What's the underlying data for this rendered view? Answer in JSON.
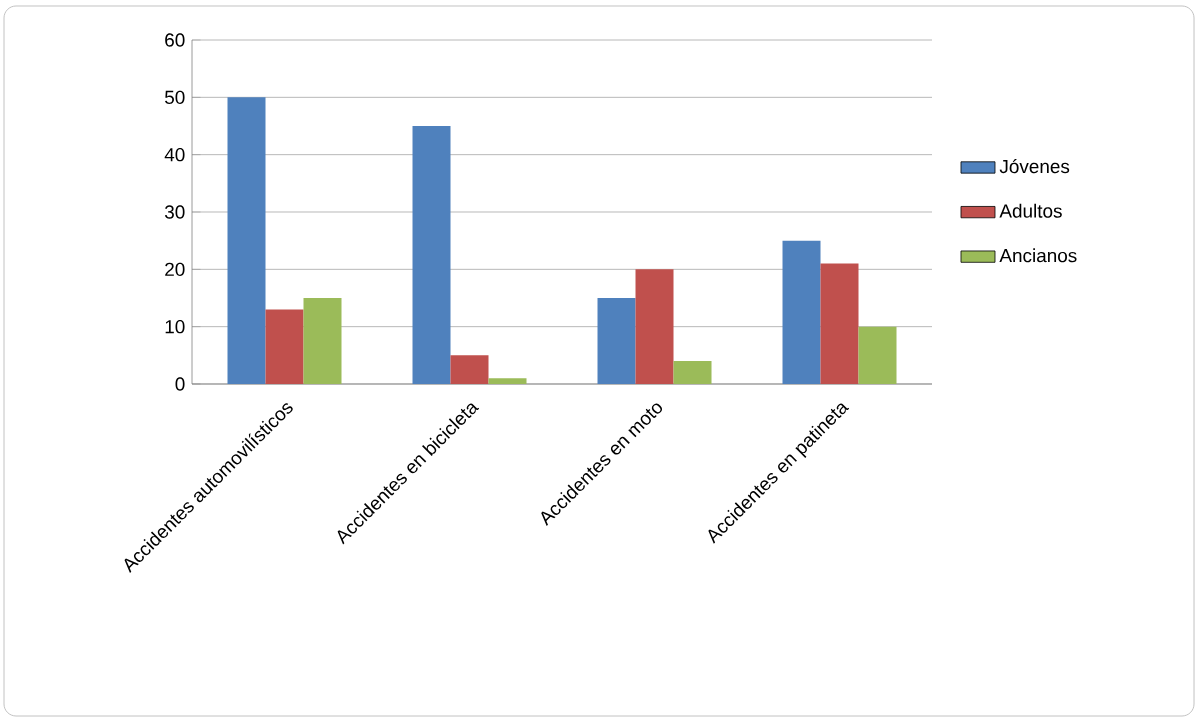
{
  "chart_data": {
    "type": "bar",
    "categories": [
      "Accidentes automovilísticos",
      "Accidentes en bicicleta",
      "Accidentes en moto",
      "Accidentes en patineta"
    ],
    "series": [
      {
        "name": "Jóvenes",
        "color": "#4f81bd",
        "values": [
          50,
          45,
          15,
          25
        ]
      },
      {
        "name": "Adultos",
        "color": "#c0504d",
        "values": [
          13,
          5,
          20,
          21
        ]
      },
      {
        "name": "Ancianos",
        "color": "#9bbb59",
        "values": [
          15,
          1,
          4,
          10
        ]
      }
    ],
    "ylim": [
      0,
      60
    ],
    "yticks": [
      0,
      10,
      20,
      30,
      40,
      50,
      60
    ],
    "grid": "y",
    "legend": "right"
  }
}
